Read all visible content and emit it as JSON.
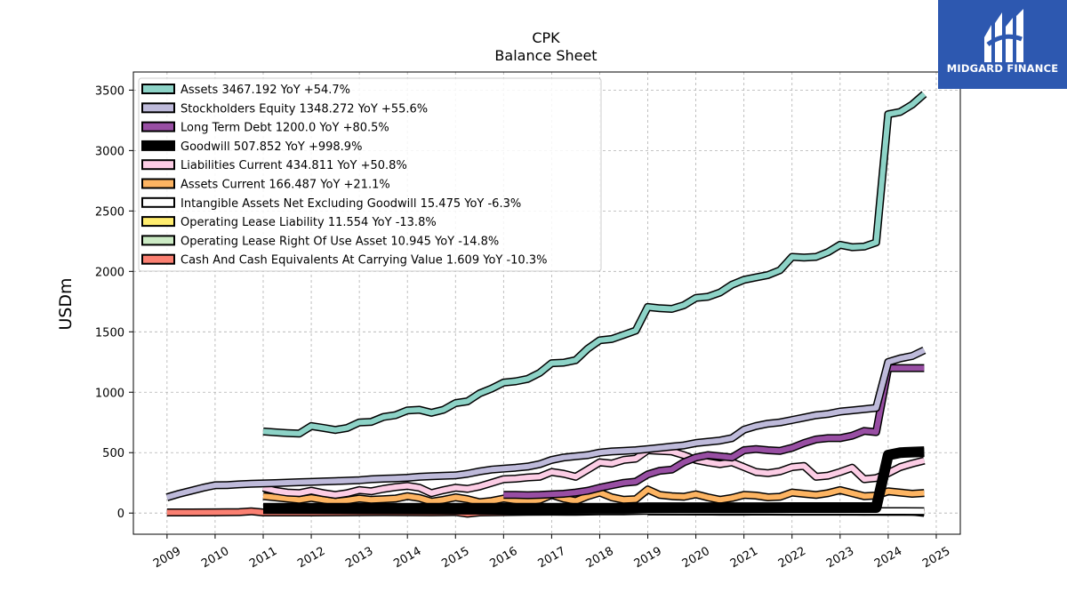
{
  "logo": {
    "text": "MIDGARD FINANCE",
    "background": "#2d58b0"
  },
  "chart_data": {
    "type": "line",
    "title": "CPK",
    "subtitle": "Balance  Sheet",
    "ylabel": "USDm",
    "xlabel": "",
    "ylim": [
      -175,
      3650
    ],
    "xlim": [
      2008.3,
      2025.5
    ],
    "yticks": [
      0,
      500,
      1000,
      1500,
      2000,
      2500,
      3000,
      3500
    ],
    "xticks": [
      "2009",
      "2010",
      "2011",
      "2012",
      "2013",
      "2014",
      "2015",
      "2016",
      "2017",
      "2018",
      "2019",
      "2020",
      "2021",
      "2022",
      "2023",
      "2024",
      "2025"
    ],
    "grid": true,
    "legend_position": "top-left",
    "series": [
      {
        "name": "Assets  3467.192 YoY +54.7%",
        "color": "#8dd3c7",
        "x": [
          2011.0,
          2011.25,
          2011.5,
          2011.75,
          2012.0,
          2012.25,
          2012.5,
          2012.75,
          2013.0,
          2013.25,
          2013.5,
          2013.75,
          2014.0,
          2014.25,
          2014.5,
          2014.75,
          2015.0,
          2015.25,
          2015.5,
          2015.75,
          2016.0,
          2016.25,
          2016.5,
          2016.75,
          2017.0,
          2017.25,
          2017.5,
          2017.75,
          2018.0,
          2018.25,
          2018.5,
          2018.75,
          2019.0,
          2019.25,
          2019.5,
          2019.75,
          2020.0,
          2020.25,
          2020.5,
          2020.75,
          2021.0,
          2021.25,
          2021.5,
          2021.75,
          2022.0,
          2022.25,
          2022.5,
          2022.75,
          2023.0,
          2023.25,
          2023.5,
          2023.75,
          2024.0,
          2024.25,
          2024.5,
          2024.75
        ],
        "y": [
          675,
          668,
          662,
          658,
          720,
          705,
          688,
          705,
          750,
          755,
          795,
          810,
          850,
          855,
          830,
          855,
          910,
          925,
          990,
          1030,
          1080,
          1090,
          1110,
          1160,
          1240,
          1245,
          1265,
          1360,
          1430,
          1440,
          1475,
          1510,
          1705,
          1695,
          1690,
          1720,
          1780,
          1790,
          1825,
          1890,
          1930,
          1950,
          1970,
          2010,
          2120,
          2115,
          2120,
          2160,
          2220,
          2200,
          2205,
          2240,
          3300,
          3320,
          3380,
          3467
        ]
      },
      {
        "name": "Stockholders Equity  1348.272 YoY +55.6%",
        "color": "#bebada",
        "x": [
          2009.0,
          2009.25,
          2009.5,
          2009.75,
          2010.0,
          2010.25,
          2010.5,
          2010.75,
          2011.0,
          2011.25,
          2011.5,
          2011.75,
          2012.0,
          2012.25,
          2012.5,
          2012.75,
          2013.0,
          2013.25,
          2013.5,
          2013.75,
          2014.0,
          2014.25,
          2014.5,
          2014.75,
          2015.0,
          2015.25,
          2015.5,
          2015.75,
          2016.0,
          2016.25,
          2016.5,
          2016.75,
          2017.0,
          2017.25,
          2017.5,
          2017.75,
          2018.0,
          2018.25,
          2018.5,
          2018.75,
          2019.0,
          2019.25,
          2019.5,
          2019.75,
          2020.0,
          2020.25,
          2020.5,
          2020.75,
          2021.0,
          2021.25,
          2021.5,
          2021.75,
          2022.0,
          2022.25,
          2022.5,
          2022.75,
          2023.0,
          2023.25,
          2023.5,
          2023.75,
          2024.0,
          2024.25,
          2024.5,
          2024.75
        ],
        "y": [
          130,
          160,
          185,
          210,
          230,
          232,
          238,
          242,
          245,
          248,
          252,
          255,
          258,
          262,
          265,
          268,
          272,
          280,
          285,
          288,
          292,
          300,
          305,
          308,
          312,
          325,
          345,
          360,
          368,
          375,
          385,
          405,
          440,
          460,
          470,
          480,
          500,
          510,
          515,
          520,
          530,
          540,
          550,
          560,
          580,
          590,
          600,
          620,
          690,
          720,
          740,
          750,
          770,
          790,
          810,
          820,
          840,
          850,
          860,
          870,
          1250,
          1280,
          1300,
          1348
        ]
      },
      {
        "name": "Long Term Debt  1200.0 YoY +80.5%",
        "color": "#984ea3",
        "x": [
          2016.0,
          2016.25,
          2016.5,
          2016.75,
          2017.0,
          2017.25,
          2017.5,
          2017.75,
          2018.0,
          2018.25,
          2018.5,
          2018.75,
          2019.0,
          2019.25,
          2019.5,
          2019.75,
          2020.0,
          2020.25,
          2020.5,
          2020.75,
          2021.0,
          2021.25,
          2021.5,
          2021.75,
          2022.0,
          2022.25,
          2022.5,
          2022.75,
          2023.0,
          2023.25,
          2023.5,
          2023.75,
          2024.0,
          2024.25,
          2024.5,
          2024.75
        ],
        "y": [
          150,
          150,
          148,
          150,
          155,
          160,
          170,
          185,
          210,
          230,
          250,
          260,
          320,
          350,
          360,
          420,
          460,
          480,
          470,
          460,
          520,
          530,
          520,
          515,
          540,
          580,
          610,
          620,
          620,
          640,
          680,
          670,
          1200,
          1200,
          1200,
          1200
        ]
      },
      {
        "name": "Goodwill  507.852 YoY +998.9%",
        "color": "#000000",
        "x": [
          2011.0,
          2011.5,
          2012.0,
          2012.5,
          2013.0,
          2013.5,
          2014.0,
          2014.5,
          2015.0,
          2015.5,
          2016.0,
          2016.5,
          2017.0,
          2017.5,
          2018.0,
          2018.5,
          2019.0,
          2019.5,
          2020.0,
          2020.5,
          2021.0,
          2021.5,
          2022.0,
          2022.5,
          2023.0,
          2023.5,
          2023.75,
          2024.0,
          2024.25,
          2024.5,
          2024.75
        ],
        "y": [
          40,
          40,
          40,
          40,
          40,
          40,
          40,
          40,
          40,
          40,
          40,
          40,
          40,
          40,
          40,
          40,
          45,
          45,
          45,
          45,
          45,
          45,
          46,
          46,
          46,
          46,
          46,
          480,
          500,
          505,
          508
        ]
      },
      {
        "name": "Liabilities Current  434.811 YoY +50.8%",
        "color": "#fccde5",
        "x": [
          2011.0,
          2011.25,
          2011.5,
          2011.75,
          2012.0,
          2012.25,
          2012.5,
          2012.75,
          2013.0,
          2013.25,
          2013.5,
          2013.75,
          2014.0,
          2014.25,
          2014.5,
          2014.75,
          2015.0,
          2015.25,
          2015.5,
          2015.75,
          2016.0,
          2016.25,
          2016.5,
          2016.75,
          2017.0,
          2017.25,
          2017.5,
          2017.75,
          2018.0,
          2018.25,
          2018.5,
          2018.75,
          2019.0,
          2019.25,
          2019.5,
          2019.75,
          2020.0,
          2020.25,
          2020.5,
          2020.75,
          2021.0,
          2021.25,
          2021.5,
          2021.75,
          2022.0,
          2022.25,
          2022.5,
          2022.75,
          2023.0,
          2023.25,
          2023.5,
          2023.75,
          2024.0,
          2024.25,
          2024.5,
          2024.75
        ],
        "y": [
          210,
          185,
          170,
          165,
          185,
          165,
          150,
          165,
          190,
          180,
          200,
          215,
          225,
          210,
          165,
          190,
          210,
          200,
          220,
          250,
          280,
          285,
          295,
          300,
          340,
          325,
          300,
          360,
          420,
          410,
          440,
          450,
          520,
          515,
          510,
          480,
          440,
          420,
          405,
          420,
          380,
          340,
          330,
          345,
          380,
          390,
          300,
          310,
          340,
          375,
          280,
          290,
          330,
          380,
          410,
          435
        ]
      },
      {
        "name": "Assets Current  166.487 YoY +21.1%",
        "color": "#fdb462",
        "x": [
          2011.0,
          2011.25,
          2011.5,
          2011.75,
          2012.0,
          2012.25,
          2012.5,
          2012.75,
          2013.0,
          2013.25,
          2013.5,
          2013.75,
          2014.0,
          2014.25,
          2014.5,
          2014.75,
          2015.0,
          2015.25,
          2015.5,
          2015.75,
          2016.0,
          2016.25,
          2016.5,
          2016.75,
          2017.0,
          2017.25,
          2017.5,
          2017.75,
          2018.0,
          2018.25,
          2018.5,
          2018.75,
          2019.0,
          2019.25,
          2019.5,
          2019.75,
          2020.0,
          2020.25,
          2020.5,
          2020.75,
          2021.0,
          2021.25,
          2021.5,
          2021.75,
          2022.0,
          2022.25,
          2022.5,
          2022.75,
          2023.0,
          2023.25,
          2023.5,
          2023.75,
          2024.0,
          2024.25,
          2024.5,
          2024.75
        ],
        "y": [
          140,
          130,
          120,
          110,
          125,
          110,
          95,
          105,
          120,
          110,
          115,
          120,
          140,
          125,
          95,
          110,
          130,
          115,
          90,
          100,
          120,
          105,
          95,
          110,
          150,
          120,
          100,
          140,
          170,
          130,
          110,
          115,
          195,
          150,
          140,
          135,
          155,
          130,
          110,
          125,
          150,
          145,
          130,
          135,
          170,
          160,
          150,
          165,
          190,
          165,
          140,
          145,
          180,
          170,
          160,
          166
        ]
      },
      {
        "name": "Intangible Assets Net Excluding Goodwill  15.475 YoY -6.3%",
        "color": "#ffffff",
        "x": [
          2011.0,
          2012.0,
          2013.0,
          2014.0,
          2015.0,
          2016.0,
          2017.0,
          2018.0,
          2019.0,
          2020.0,
          2021.0,
          2022.0,
          2023.0,
          2024.0,
          2024.75
        ],
        "y": [
          25,
          24,
          23,
          22,
          21,
          20,
          20,
          19,
          19,
          18,
          18,
          17,
          17,
          16,
          15.5
        ]
      },
      {
        "name": "Operating Lease Liability  11.554 YoY -13.8%",
        "color": "#ffed6f",
        "x": [
          2019.0,
          2020.0,
          2021.0,
          2022.0,
          2023.0,
          2024.0,
          2024.75
        ],
        "y": [
          15,
          14,
          14,
          13,
          13,
          12,
          11.5
        ]
      },
      {
        "name": "Operating Lease Right Of Use Asset  10.945 YoY -14.8%",
        "color": "#ccebc5",
        "x": [
          2019.0,
          2020.0,
          2021.0,
          2022.0,
          2023.0,
          2024.0,
          2024.75
        ],
        "y": [
          14,
          13,
          13,
          12,
          12,
          11,
          10.9
        ]
      },
      {
        "name": "Cash And Cash Equivalents At Carrying Value  1.609 YoY -10.3%",
        "color": "#fb8072",
        "x": [
          2009.0,
          2009.5,
          2010.0,
          2010.5,
          2010.75,
          2011.0,
          2011.5,
          2012.0,
          2012.5,
          2013.0,
          2013.5,
          2014.0,
          2014.5,
          2015.0,
          2015.25,
          2015.5,
          2016.0,
          2016.5,
          2017.0,
          2017.5,
          2018.0,
          2018.5,
          2019.0,
          2019.5,
          2020.0,
          2020.5,
          2021.0,
          2021.5,
          2022.0,
          2022.5,
          2023.0,
          2023.5,
          2024.0,
          2024.5,
          2024.75
        ],
        "y": [
          5,
          5,
          6,
          8,
          15,
          5,
          5,
          5,
          6,
          7,
          8,
          7,
          6,
          8,
          -5,
          5,
          8,
          10,
          12,
          10,
          15,
          14,
          20,
          18,
          15,
          12,
          12,
          14,
          15,
          13,
          14,
          12,
          15,
          12,
          1.6
        ]
      }
    ]
  }
}
